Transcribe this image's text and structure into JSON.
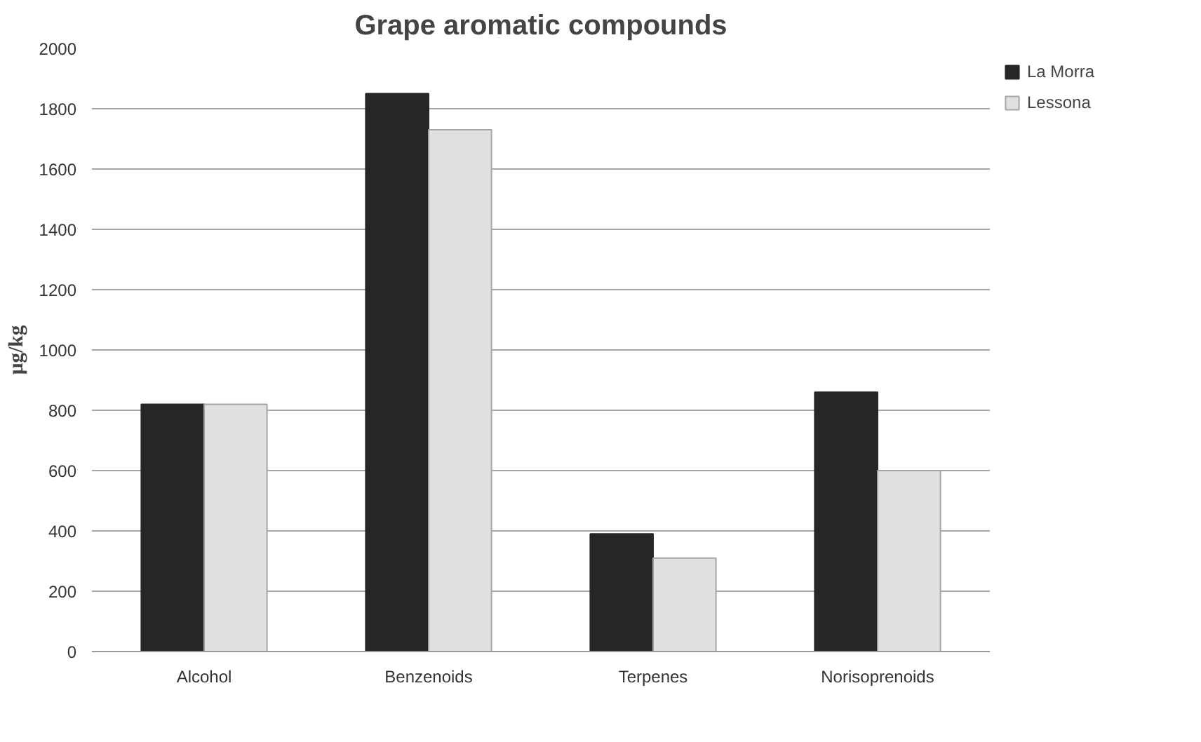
{
  "chart_data": {
    "type": "bar",
    "title": "Grape aromatic compounds",
    "ylabel": "µg/kg",
    "categories": [
      "Alcohol",
      "Benzenoids",
      "Terpenes",
      "Norisoprenoids"
    ],
    "series": [
      {
        "name": "La Morra",
        "color": "#262626",
        "values": [
          820,
          1850,
          390,
          860
        ]
      },
      {
        "name": "Lessona",
        "color": "#e0e0e0",
        "values": [
          820,
          1730,
          310,
          600
        ]
      }
    ],
    "ylim": [
      0,
      2000
    ],
    "yticks": [
      0,
      200,
      400,
      600,
      800,
      1000,
      1200,
      1400,
      1600,
      1800,
      2000
    ],
    "grid": "y",
    "legend": "top right"
  }
}
